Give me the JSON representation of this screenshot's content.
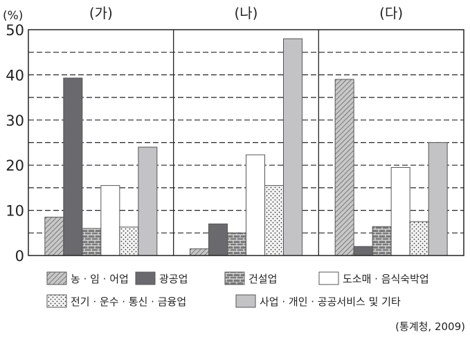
{
  "chart_data": {
    "type": "bar",
    "unit_label": "(%)",
    "groups": [
      "(가)",
      "(나)",
      "(다)"
    ],
    "ylim": [
      0,
      50
    ],
    "yticks": [
      0,
      10,
      20,
      30,
      40,
      50
    ],
    "grid": "dashed every 5",
    "series": [
      {
        "name": "농 · 임 · 어업",
        "pattern": "hatch",
        "color": "#bdbdbd",
        "values": [
          8.5,
          1.5,
          39
        ]
      },
      {
        "name": "광공업",
        "pattern": "solid",
        "color": "#6a6a6e",
        "values": [
          39.3,
          7,
          2
        ]
      },
      {
        "name": "건설업",
        "pattern": "brick",
        "color": "#777777",
        "values": [
          6,
          5,
          6.4
        ]
      },
      {
        "name": "도소매 · 음식숙박업",
        "pattern": "solid",
        "color": "#ffffff",
        "values": [
          15.5,
          22.3,
          19.5
        ]
      },
      {
        "name": "전기 · 운수 · 통신 · 금융업",
        "pattern": "dots",
        "color": "#f2f2f2",
        "values": [
          6.3,
          15.5,
          7.5
        ]
      },
      {
        "name": "사업 · 개인 · 공공서비스 및 기타",
        "pattern": "solid",
        "color": "#c3c3c5",
        "values": [
          24,
          48,
          25
        ]
      }
    ],
    "legend_position": "bottom",
    "source": "(통계청, 2009)"
  }
}
